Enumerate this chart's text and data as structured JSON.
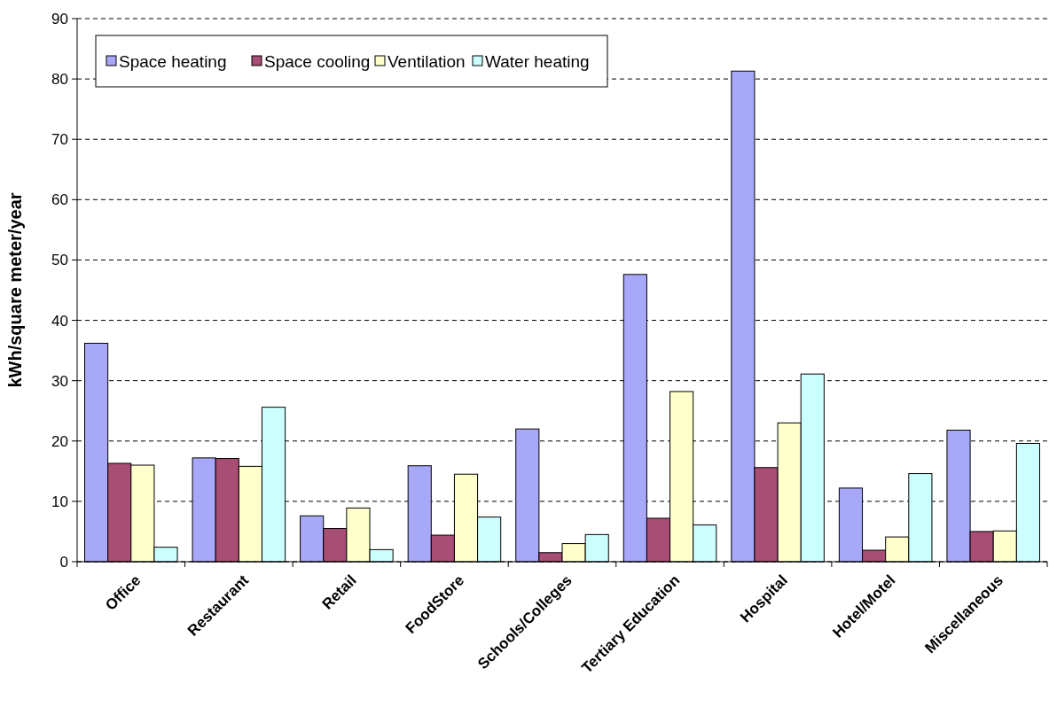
{
  "chart_data": {
    "type": "bar",
    "ylabel": "kWh/square meter/year",
    "categories": [
      "Office",
      "Restaurant",
      "Retail",
      "FoodStore",
      "Schools/Colleges",
      "Tertiary Education",
      "Hospital",
      "Hotel/Motel",
      "Miscellaneous"
    ],
    "series": [
      {
        "name": "Space heating",
        "color": "#a8a8f8",
        "values": [
          36.2,
          17.2,
          7.6,
          15.9,
          22.0,
          47.6,
          81.3,
          12.2,
          21.8
        ]
      },
      {
        "name": "Space cooling",
        "color": "#a84d74",
        "values": [
          16.3,
          17.1,
          5.5,
          4.4,
          1.5,
          7.2,
          15.6,
          1.9,
          5.0
        ]
      },
      {
        "name": "Ventilation",
        "color": "#ffffcc",
        "values": [
          16.0,
          15.8,
          8.9,
          14.5,
          3.0,
          28.2,
          23.0,
          4.1,
          5.1
        ]
      },
      {
        "name": "Water heating",
        "color": "#ccffff",
        "values": [
          2.4,
          25.6,
          2.0,
          7.4,
          4.5,
          6.1,
          31.1,
          14.6,
          19.6
        ]
      }
    ],
    "ylim": [
      0,
      90
    ],
    "yticks": [
      0,
      10,
      20,
      30,
      40,
      50,
      60,
      70,
      80,
      90
    ],
    "grid": "y",
    "legend": "top left"
  }
}
